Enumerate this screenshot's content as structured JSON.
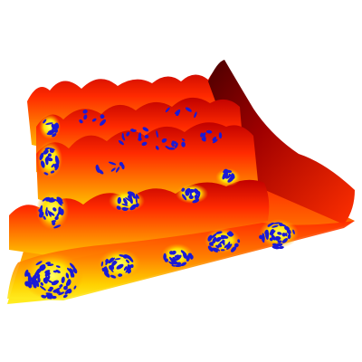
{
  "scene": {
    "subject": "surface-plot",
    "ring_count": 4,
    "colors": {
      "background": "#ffffff",
      "peak": "#5a0000",
      "deep_red": "#a80000",
      "red": "#ee1100",
      "orange": "#ff6a00",
      "amber": "#ffb000",
      "yellow": "#ffe600",
      "trough": "#ffff4d",
      "marker": "#1a1ad6"
    }
  }
}
